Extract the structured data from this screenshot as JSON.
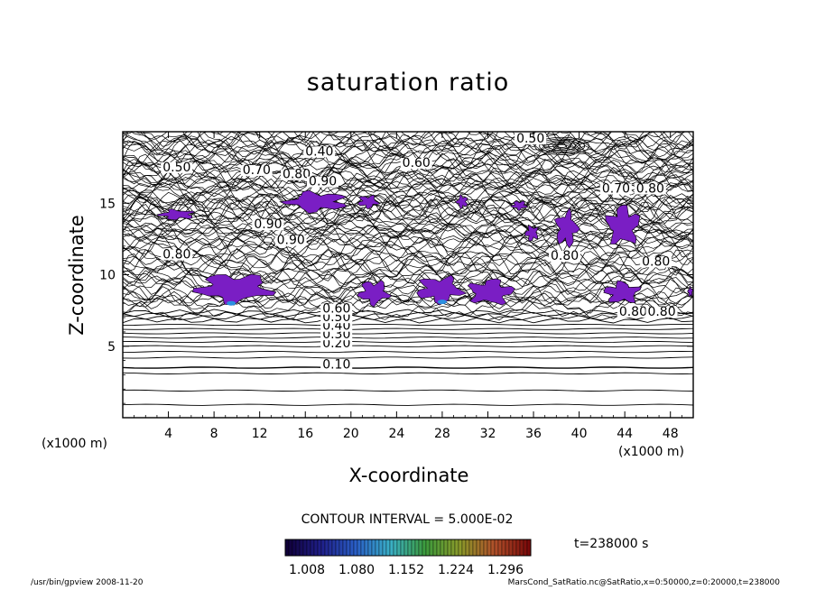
{
  "chart_data": {
    "type": "contour",
    "title": "saturation ratio",
    "xlabel": "X-coordinate",
    "ylabel": "Z-coordinate",
    "x_unit": "(x1000 m)",
    "z_unit": "(x1000 m)",
    "xlim": [
      0,
      50
    ],
    "ylim": [
      0,
      20
    ],
    "x_ticks": [
      "4",
      "8",
      "12",
      "16",
      "20",
      "24",
      "28",
      "32",
      "36",
      "40",
      "44",
      "48"
    ],
    "y_ticks": [
      "5",
      "10",
      "15"
    ],
    "contour_interval": "CONTOUR INTERVAL = 5.000E-02",
    "contour_labels": [
      {
        "text": "0.10",
        "x": 17.5,
        "y": 3.5
      },
      {
        "text": "0.20",
        "x": 17.5,
        "y": 5.0
      },
      {
        "text": "0.30",
        "x": 17.5,
        "y": 5.6
      },
      {
        "text": "0.40",
        "x": 17.5,
        "y": 6.2
      },
      {
        "text": "0.50",
        "x": 17.5,
        "y": 6.8
      },
      {
        "text": "0.60",
        "x": 17.5,
        "y": 7.4
      },
      {
        "text": "0.40",
        "x": 16.0,
        "y": 18.4
      },
      {
        "text": "0.50",
        "x": 3.5,
        "y": 17.3
      },
      {
        "text": "0.70",
        "x": 10.5,
        "y": 17.1
      },
      {
        "text": "0.80",
        "x": 14.0,
        "y": 16.8
      },
      {
        "text": "0.90",
        "x": 16.3,
        "y": 16.3
      },
      {
        "text": "0.60",
        "x": 24.5,
        "y": 17.6
      },
      {
        "text": "0.50",
        "x": 34.5,
        "y": 19.3
      },
      {
        "text": "0.70",
        "x": 42.0,
        "y": 15.8
      },
      {
        "text": "0.80",
        "x": 45.0,
        "y": 15.8
      },
      {
        "text": "0.90",
        "x": 11.5,
        "y": 13.3
      },
      {
        "text": "0.90",
        "x": 13.5,
        "y": 12.2
      },
      {
        "text": "0.80",
        "x": 3.5,
        "y": 11.2
      },
      {
        "text": "0.80",
        "x": 37.5,
        "y": 11.1
      },
      {
        "text": "0.80",
        "x": 45.5,
        "y": 10.7
      },
      {
        "text": "0.80",
        "x": 43.5,
        "y": 7.2
      },
      {
        "text": "0.80",
        "x": 46.0,
        "y": 7.2
      }
    ],
    "color_scale": {
      "ticks": [
        "1.008",
        "1.080",
        "1.152",
        "1.224",
        "1.296"
      ],
      "colors": [
        "#10003a",
        "#1f1f8a",
        "#2a5fc6",
        "#3ab0c6",
        "#3c9a3c",
        "#8a9a2a",
        "#b0502a",
        "#7a0a0a"
      ]
    },
    "fill_color": "#7a1ec4",
    "highlight_color": "#2b8fe0",
    "supersaturated_regions_note": ""
  },
  "time": "t=238000 s",
  "footer_left": "/usr/bin/gpview  2008-11-20",
  "footer_right": "MarsCond_SatRatio.nc@SatRatio,x=0:50000,z=0:20000,t=238000"
}
